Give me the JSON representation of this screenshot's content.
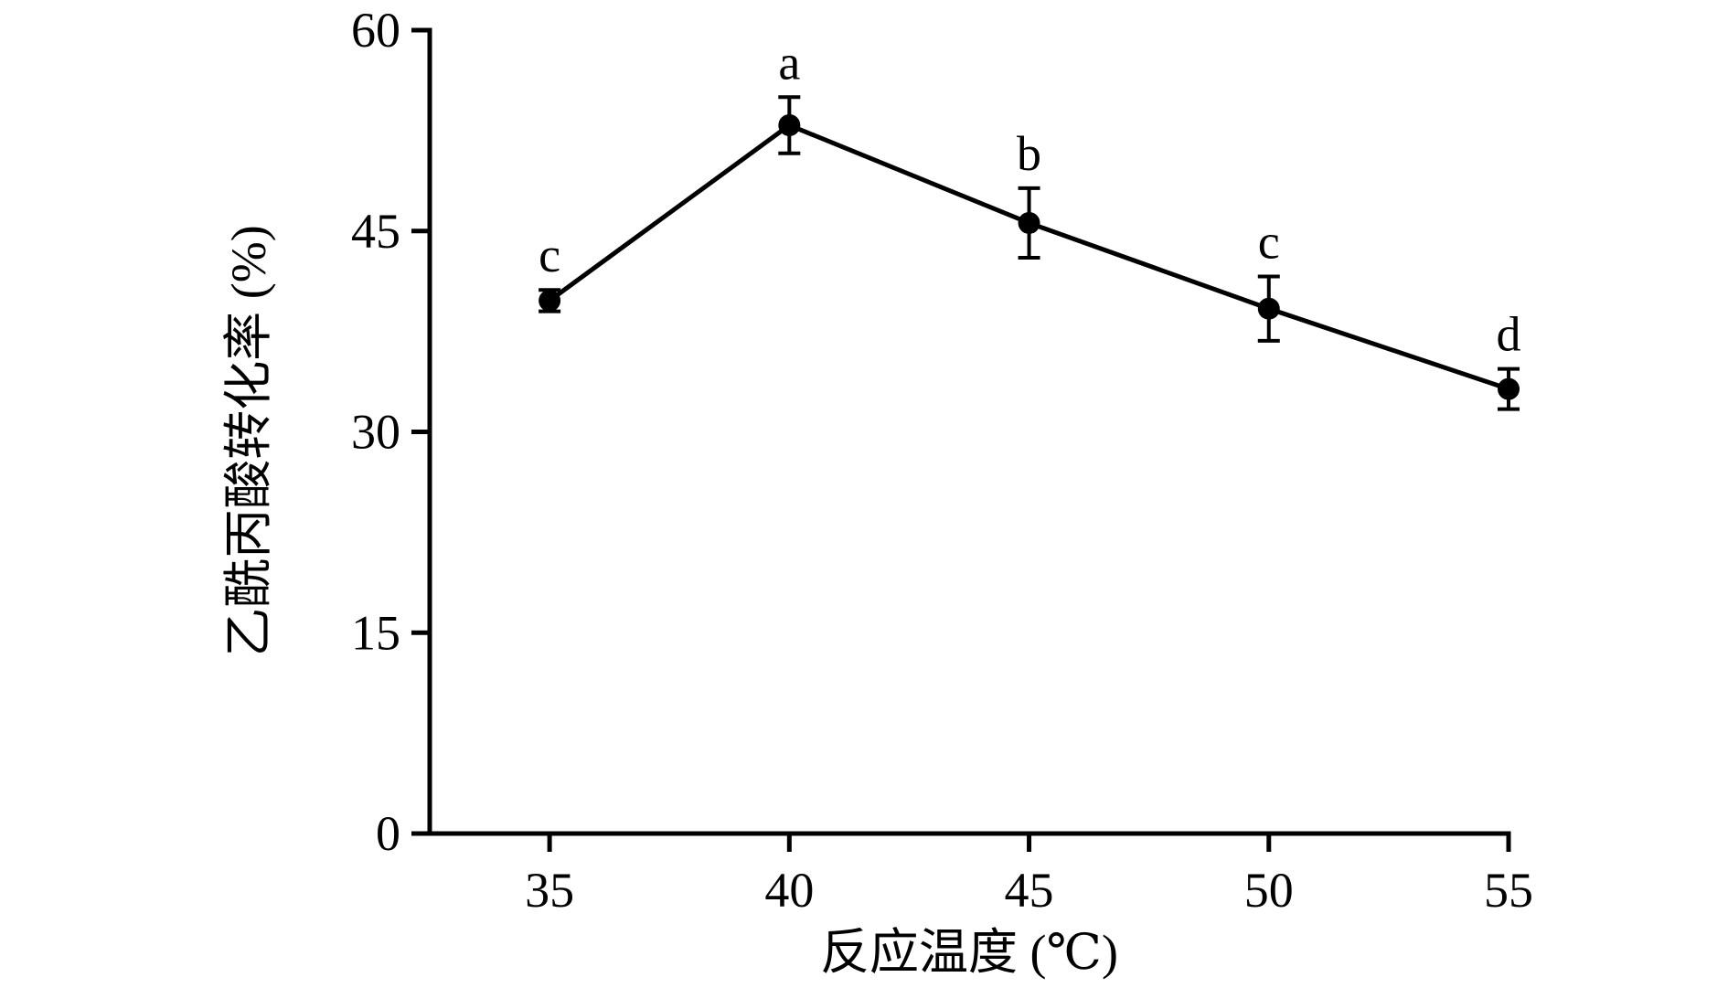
{
  "chart_data": {
    "type": "line",
    "title": "",
    "xlabel": "反应温度 (℃)",
    "ylabel": "乙酰丙酸转化率 (%)",
    "x": [
      35,
      40,
      45,
      50,
      55
    ],
    "xlim": [
      32.5,
      55
    ],
    "ylim": [
      0,
      60
    ],
    "xticks": [
      "35",
      "40",
      "45",
      "50",
      "55"
    ],
    "yticks": [
      "0",
      "15",
      "30",
      "45",
      "60"
    ],
    "series": [
      {
        "values": [
          39.8,
          52.9,
          45.6,
          39.2,
          33.2
        ],
        "errors": [
          0.8,
          2.1,
          2.6,
          2.4,
          1.5
        ],
        "labels": [
          "c",
          "a",
          "b",
          "c",
          "d"
        ]
      }
    ],
    "grid": false,
    "legend": "none",
    "colors": {
      "line": "#000000",
      "marker": "#000000"
    }
  }
}
